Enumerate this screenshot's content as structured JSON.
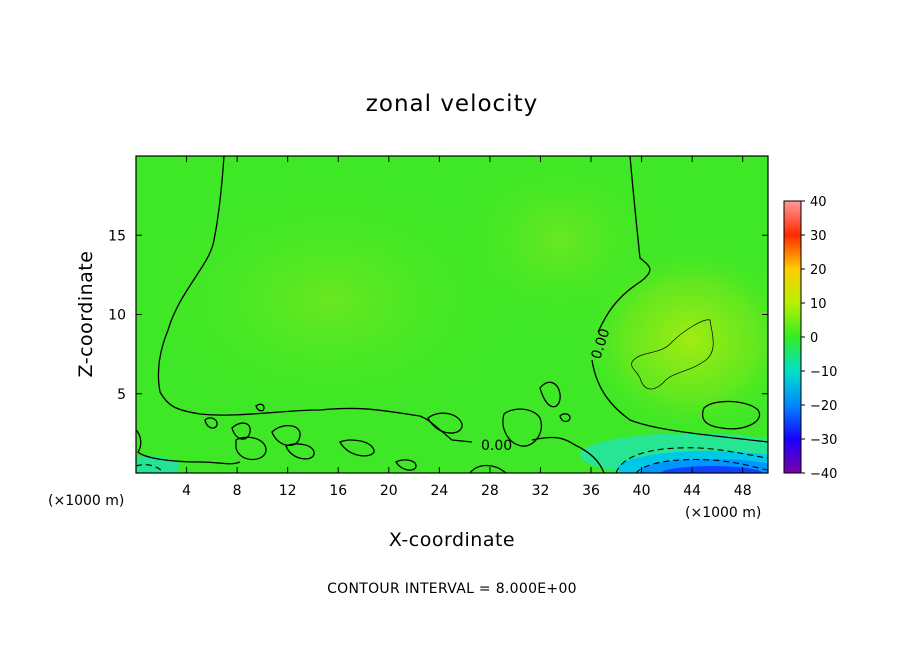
{
  "chart_data": {
    "type": "heatmap",
    "title": "zonal velocity",
    "xlabel": "X-coordinate",
    "ylabel": "Z-coordinate",
    "x_unit": "(×1000 m)",
    "x_ticks": [
      4,
      8,
      12,
      16,
      20,
      24,
      28,
      32,
      36,
      40,
      44,
      48
    ],
    "y_ticks": [
      5,
      10,
      15
    ],
    "xlim": [
      0,
      50
    ],
    "ylim": [
      0,
      20
    ],
    "colorbar": {
      "ticks": [
        40,
        30,
        20,
        10,
        0,
        -10,
        -20,
        -30,
        -40
      ],
      "range": [
        -40,
        40
      ],
      "colors": {
        "-40": "#7a00a8",
        "-30": "#1a00ff",
        "-20": "#0088ff",
        "-10": "#00e0c8",
        "0": "#33ee22",
        "10": "#b8f000",
        "20": "#ffcc00",
        "30": "#ff2a00",
        "40": "#ff9a9a"
      }
    },
    "contour_interval": 8.0,
    "contour_labels": [
      "0.00",
      "0.00"
    ],
    "footnote": "CONTOUR INTERVAL = 8.000E+00",
    "features": [
      {
        "name": "positive anomaly",
        "x": 43,
        "z": 7.5,
        "value": 8
      },
      {
        "name": "negative jet",
        "x": 45,
        "z": 0.6,
        "value": -24
      }
    ]
  }
}
